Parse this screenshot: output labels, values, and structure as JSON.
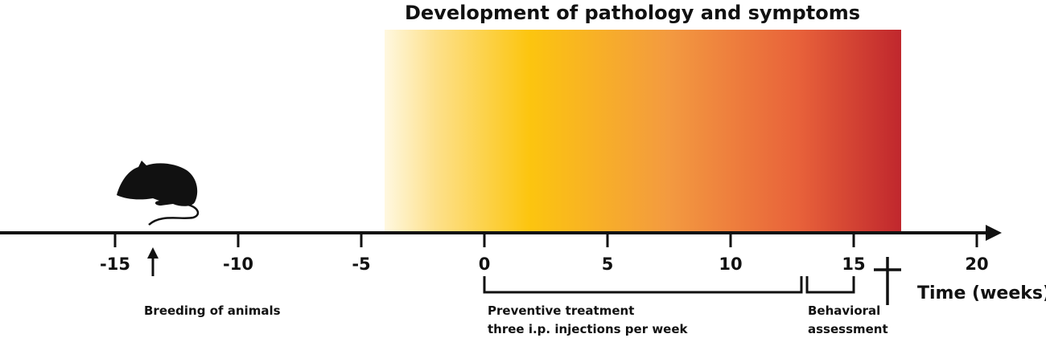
{
  "title": "Development of pathology and symptoms",
  "axis": {
    "label": "Time (weeks)",
    "ticks": [
      -15,
      -10,
      -5,
      0,
      5,
      10,
      15,
      20
    ]
  },
  "events": [
    {
      "lines": [
        "Breeding of animals"
      ]
    },
    {
      "lines": [
        "Preventive treatment",
        "three i.p. injections per week"
      ]
    },
    {
      "lines": [
        "Behavioral",
        "assessment"
      ]
    }
  ]
}
